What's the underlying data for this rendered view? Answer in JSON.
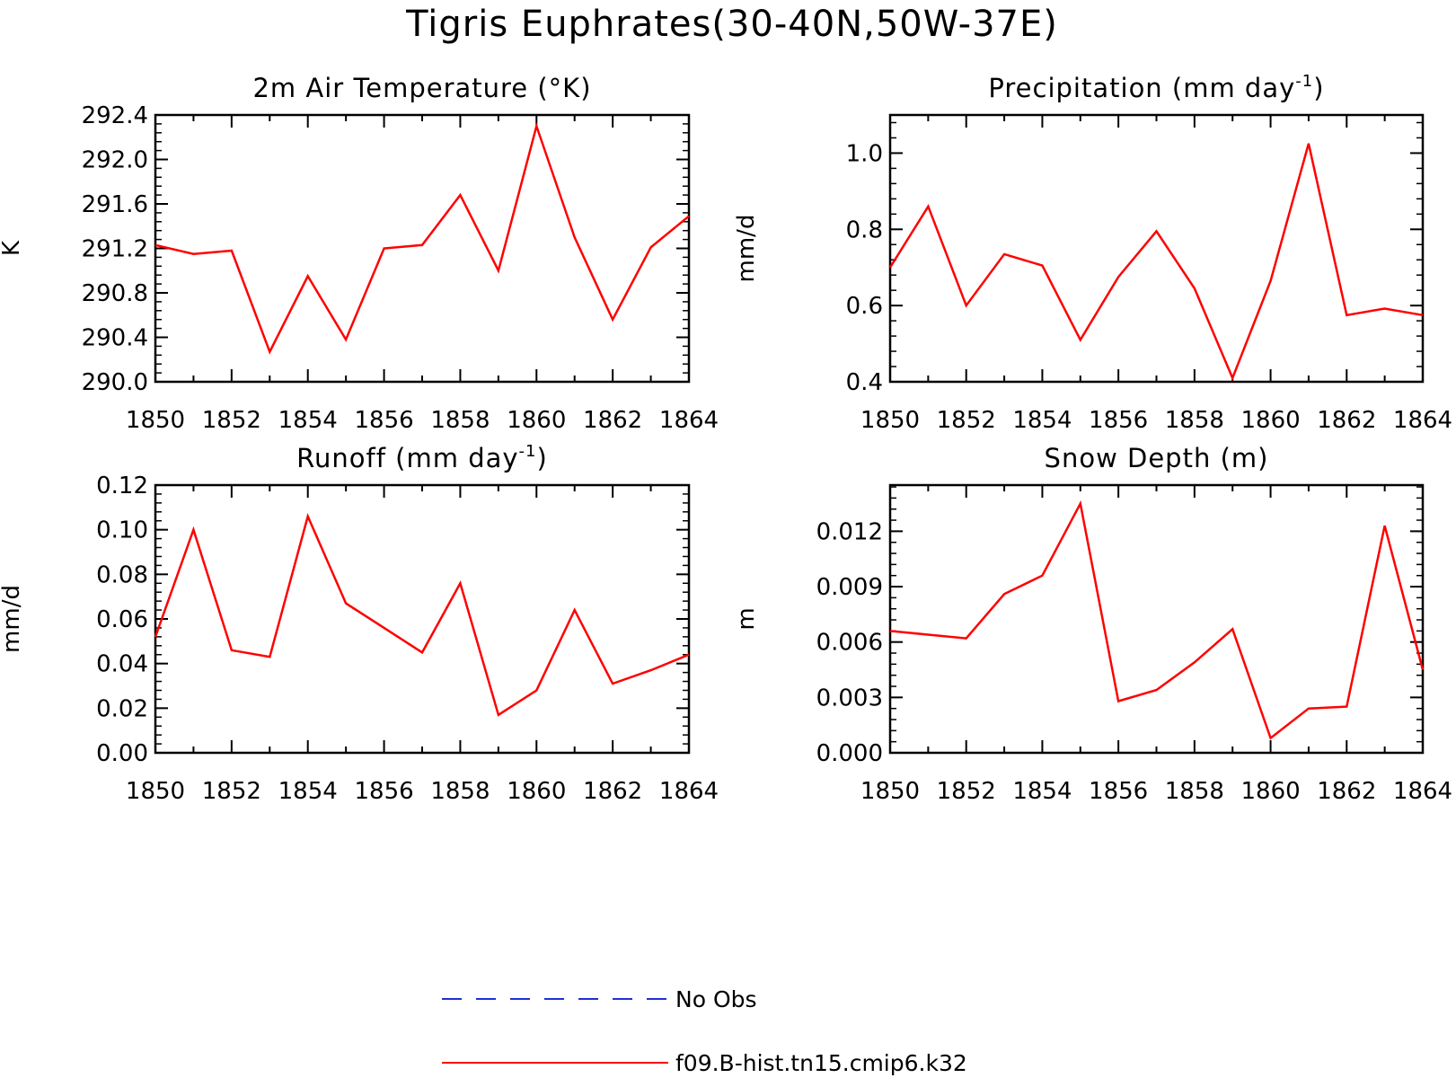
{
  "title": "Tigris Euphrates(30-40N,50W-37E)",
  "legend": [
    {
      "label": "No Obs",
      "color": "#1f2fd6",
      "style": "dashed"
    },
    {
      "label": "f09.B-hist.tn15.cmip6.k32",
      "color": "#ff0000",
      "style": "solid"
    }
  ],
  "chart_data": [
    {
      "type": "line",
      "title": "2m Air Temperature (°K)",
      "ylabel": "K",
      "xlim": [
        1850,
        1864
      ],
      "ylim": [
        290.0,
        292.4
      ],
      "x_ticks": [
        "1850",
        "1852",
        "1854",
        "1856",
        "1858",
        "1860",
        "1862",
        "1864"
      ],
      "y_ticks": [
        "290.0",
        "290.4",
        "290.8",
        "291.2",
        "291.6",
        "292.0",
        "292.4"
      ],
      "color": "#ff0000",
      "x": [
        1850,
        1851,
        1852,
        1853,
        1854,
        1855,
        1856,
        1857,
        1858,
        1859,
        1860,
        1861,
        1862,
        1863,
        1864
      ],
      "y": [
        291.23,
        291.15,
        291.18,
        290.27,
        290.95,
        290.38,
        291.2,
        291.23,
        291.68,
        291.0,
        292.3,
        291.3,
        290.56,
        291.21,
        291.49
      ]
    },
    {
      "type": "line",
      "title": "Precipitation (mm day",
      "title_sup": "-1",
      "title_end": ")",
      "ylabel": "mm/d",
      "xlim": [
        1850,
        1864
      ],
      "ylim": [
        0.4,
        1.1
      ],
      "x_ticks": [
        "1850",
        "1852",
        "1854",
        "1856",
        "1858",
        "1860",
        "1862",
        "1864"
      ],
      "y_ticks": [
        "0.4",
        "0.6",
        "0.8",
        "1.0"
      ],
      "y_tick_values": [
        0.4,
        0.6,
        0.8,
        1.0
      ],
      "color": "#ff0000",
      "x": [
        1850,
        1851,
        1852,
        1853,
        1854,
        1855,
        1856,
        1857,
        1858,
        1859,
        1860,
        1861,
        1862,
        1863,
        1864
      ],
      "y": [
        0.7,
        0.86,
        0.6,
        0.735,
        0.705,
        0.51,
        0.675,
        0.795,
        0.645,
        0.41,
        0.665,
        1.025,
        0.575,
        0.592,
        0.575
      ]
    },
    {
      "type": "line",
      "title": "Runoff (mm day",
      "title_sup": "-1",
      "title_end": ")",
      "ylabel": "mm/d",
      "xlim": [
        1850,
        1864
      ],
      "ylim": [
        0.0,
        0.12
      ],
      "x_ticks": [
        "1850",
        "1852",
        "1854",
        "1856",
        "1858",
        "1860",
        "1862",
        "1864"
      ],
      "y_ticks": [
        "0.00",
        "0.02",
        "0.04",
        "0.06",
        "0.08",
        "0.10",
        "0.12"
      ],
      "color": "#ff0000",
      "x": [
        1850,
        1851,
        1852,
        1853,
        1854,
        1855,
        1856,
        1857,
        1858,
        1859,
        1860,
        1861,
        1862,
        1863,
        1864
      ],
      "y": [
        0.052,
        0.1,
        0.046,
        0.043,
        0.106,
        0.067,
        0.056,
        0.045,
        0.076,
        0.017,
        0.028,
        0.064,
        0.031,
        0.037,
        0.044
      ]
    },
    {
      "type": "line",
      "title": "Snow Depth (m)",
      "ylabel": "m",
      "xlim": [
        1850,
        1864
      ],
      "ylim": [
        0.0,
        0.0145
      ],
      "x_ticks": [
        "1850",
        "1852",
        "1854",
        "1856",
        "1858",
        "1860",
        "1862",
        "1864"
      ],
      "y_ticks": [
        "0.000",
        "0.003",
        "0.006",
        "0.009",
        "0.012"
      ],
      "y_tick_values": [
        0.0,
        0.003,
        0.006,
        0.009,
        0.012
      ],
      "color": "#ff0000",
      "x": [
        1850,
        1851,
        1852,
        1853,
        1854,
        1855,
        1856,
        1857,
        1858,
        1859,
        1860,
        1861,
        1862,
        1863,
        1864
      ],
      "y": [
        0.0066,
        0.0064,
        0.0062,
        0.0086,
        0.0096,
        0.0135,
        0.0028,
        0.0034,
        0.0049,
        0.0067,
        0.0008,
        0.0024,
        0.0025,
        0.0123,
        0.0045
      ]
    }
  ]
}
